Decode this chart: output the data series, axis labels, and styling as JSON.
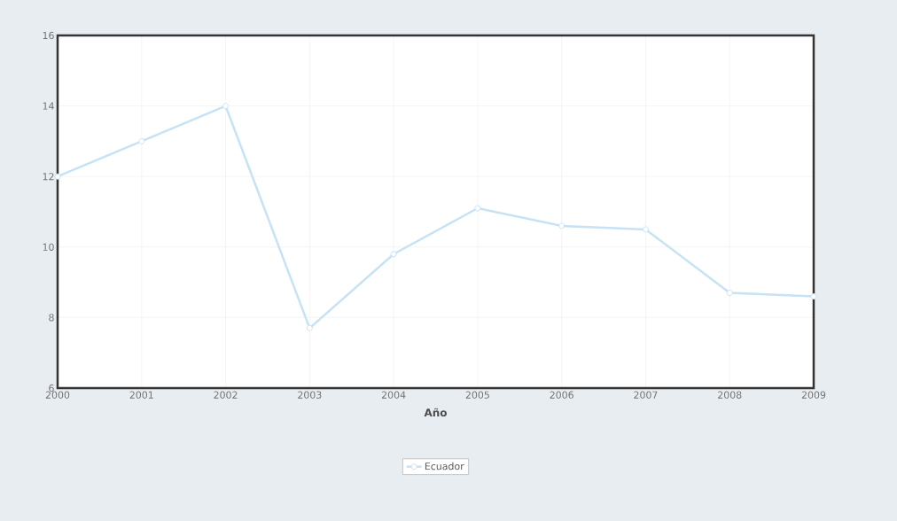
{
  "chart_data": {
    "type": "line",
    "xlabel": "Año",
    "x": [
      2000,
      2001,
      2002,
      2003,
      2004,
      2005,
      2006,
      2007,
      2008,
      2009
    ],
    "series": [
      {
        "name": "Ecuador",
        "color": "#c6e2f5",
        "values": [
          12,
          13,
          14,
          7.7,
          9.8,
          11.1,
          10.6,
          10.5,
          8.7,
          8.6
        ]
      }
    ],
    "xlim": [
      2000,
      2009
    ],
    "xticks": [
      2000,
      2001,
      2002,
      2003,
      2004,
      2005,
      2006,
      2007,
      2008,
      2009
    ],
    "ylim": [
      6,
      16
    ],
    "yticks": [
      6,
      8,
      10,
      12,
      14,
      16
    ],
    "grid": true,
    "legend": "bottom",
    "marker": "circle",
    "line_style": "solid"
  }
}
